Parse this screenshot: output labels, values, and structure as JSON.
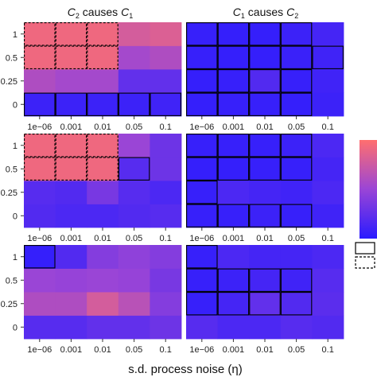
{
  "chart_data": {
    "type": "heatmap",
    "facet_columns": [
      "C_2 causes C_1",
      "C_1 causes C_2"
    ],
    "x_axis": {
      "label": "s.d. process noise (η)",
      "categories": [
        "1e−06",
        "0.001",
        "0.01",
        "0.05",
        "0.1"
      ]
    },
    "y_axis": {
      "categories": [
        "0",
        "0.25",
        "0.5",
        "1"
      ]
    },
    "colors": {
      "low": "#2a1bff",
      "mid": "#9a45d6",
      "high": "#ff6f6f"
    },
    "legend_marks": [
      "solid-box",
      "dashed-box"
    ],
    "panels": [
      {
        "row": 0,
        "col": 0,
        "values": [
          [
            0.08,
            0.08,
            0.08,
            0.08,
            0.1
          ],
          [
            0.6,
            0.55,
            0.55,
            0.25,
            0.25
          ],
          [
            0.92,
            0.92,
            0.92,
            0.55,
            0.6
          ],
          [
            0.92,
            0.92,
            0.92,
            0.78,
            0.82
          ]
        ],
        "solid": [
          [
            0,
            0
          ],
          [
            1,
            0
          ],
          [
            2,
            0
          ],
          [
            3,
            0
          ],
          [
            4,
            0
          ]
        ],
        "dashed": [
          [
            0,
            2
          ],
          [
            1,
            2
          ],
          [
            2,
            2
          ],
          [
            0,
            3
          ],
          [
            1,
            3
          ],
          [
            2,
            3
          ]
        ]
      },
      {
        "row": 0,
        "col": 1,
        "values": [
          [
            0.05,
            0.06,
            0.06,
            0.05,
            0.08
          ],
          [
            0.05,
            0.06,
            0.18,
            0.06,
            0.1
          ],
          [
            0.06,
            0.05,
            0.05,
            0.07,
            0.1
          ],
          [
            0.06,
            0.05,
            0.05,
            0.08,
            0.12
          ]
        ],
        "solid": [
          [
            0,
            0
          ],
          [
            1,
            0
          ],
          [
            2,
            0
          ],
          [
            3,
            0
          ],
          [
            0,
            1
          ],
          [
            1,
            1
          ],
          [
            2,
            1
          ],
          [
            3,
            1
          ],
          [
            0,
            2
          ],
          [
            1,
            2
          ],
          [
            2,
            2
          ],
          [
            3,
            2
          ],
          [
            4,
            2
          ],
          [
            0,
            3
          ],
          [
            1,
            3
          ],
          [
            2,
            3
          ],
          [
            3,
            3
          ]
        ],
        "dashed": []
      },
      {
        "row": 1,
        "col": 0,
        "values": [
          [
            0.18,
            0.15,
            0.15,
            0.18,
            0.2
          ],
          [
            0.2,
            0.18,
            0.35,
            0.2,
            0.15
          ],
          [
            0.92,
            0.92,
            0.92,
            0.2,
            0.3
          ],
          [
            0.92,
            0.92,
            0.92,
            0.5,
            0.3
          ]
        ],
        "solid": [
          [
            3,
            2
          ]
        ],
        "dashed": [
          [
            0,
            2
          ],
          [
            1,
            2
          ],
          [
            2,
            2
          ],
          [
            0,
            3
          ],
          [
            1,
            3
          ],
          [
            2,
            3
          ]
        ]
      },
      {
        "row": 1,
        "col": 1,
        "values": [
          [
            0.06,
            0.06,
            0.08,
            0.06,
            0.1
          ],
          [
            0.06,
            0.15,
            0.12,
            0.1,
            0.15
          ],
          [
            0.05,
            0.05,
            0.06,
            0.06,
            0.12
          ],
          [
            0.06,
            0.06,
            0.06,
            0.08,
            0.15
          ]
        ],
        "solid": [
          [
            0,
            0
          ],
          [
            1,
            0
          ],
          [
            2,
            0
          ],
          [
            3,
            0
          ],
          [
            0,
            1
          ],
          [
            0,
            2
          ],
          [
            1,
            2
          ],
          [
            2,
            2
          ],
          [
            3,
            2
          ],
          [
            0,
            3
          ],
          [
            1,
            3
          ],
          [
            2,
            3
          ],
          [
            3,
            3
          ]
        ],
        "dashed": []
      },
      {
        "row": 2,
        "col": 0,
        "values": [
          [
            0.2,
            0.2,
            0.25,
            0.25,
            0.3
          ],
          [
            0.6,
            0.6,
            0.78,
            0.65,
            0.4
          ],
          [
            0.5,
            0.48,
            0.5,
            0.48,
            0.35
          ],
          [
            0.05,
            0.18,
            0.4,
            0.45,
            0.4
          ]
        ],
        "solid": [
          [
            0,
            3
          ]
        ],
        "dashed": []
      },
      {
        "row": 2,
        "col": 1,
        "values": [
          [
            0.2,
            0.15,
            0.15,
            0.2,
            0.18
          ],
          [
            0.06,
            0.12,
            0.25,
            0.18,
            0.22
          ],
          [
            0.06,
            0.08,
            0.12,
            0.1,
            0.2
          ],
          [
            0.06,
            0.15,
            0.12,
            0.12,
            0.15
          ]
        ],
        "solid": [
          [
            0,
            1
          ],
          [
            1,
            1
          ],
          [
            2,
            1
          ],
          [
            3,
            1
          ],
          [
            0,
            2
          ],
          [
            1,
            2
          ],
          [
            2,
            2
          ],
          [
            3,
            2
          ],
          [
            0,
            3
          ]
        ],
        "dashed": []
      }
    ]
  }
}
